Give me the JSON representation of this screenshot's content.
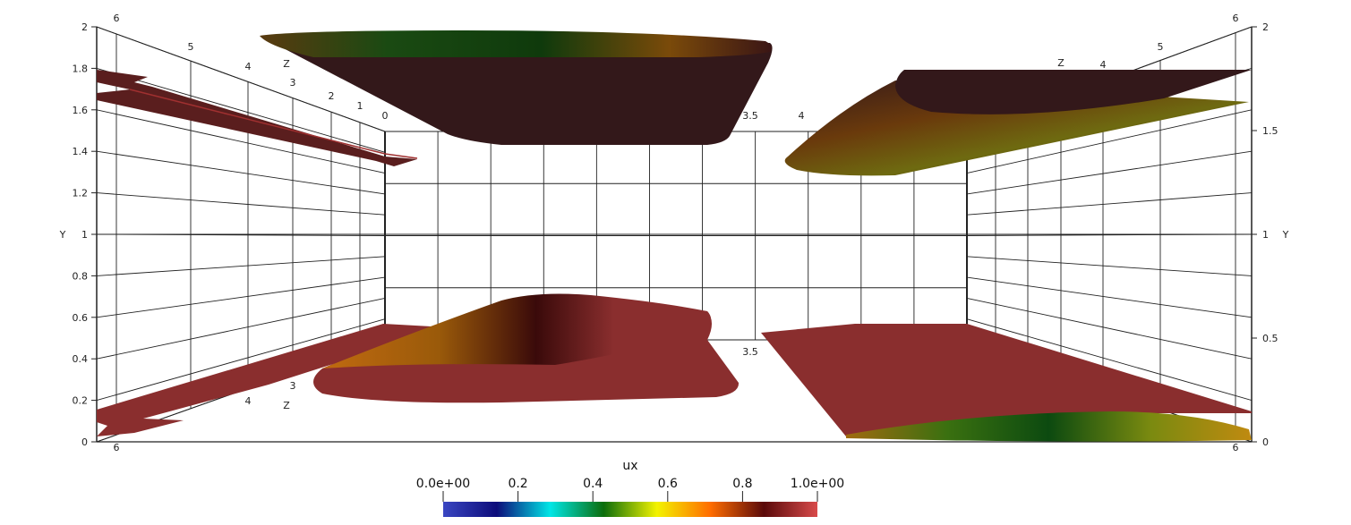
{
  "chart_data": {
    "type": "surface-3d",
    "scalar_field": "ux",
    "colorbar": {
      "title": "ux",
      "range": [
        0,
        1
      ],
      "labels": [
        "0.0e+00",
        "0.2",
        "0.4",
        "0.6",
        "0.8",
        "1.0e+00"
      ],
      "ticks": [
        0,
        0.2,
        0.4,
        0.6,
        0.8,
        1.0
      ],
      "colormap": [
        "#3a46c2",
        "#0c0c7a",
        "#00e6e6",
        "#0b6d0b",
        "#f3f300",
        "#ff6d00",
        "#5a0a0a",
        "#d84a4a"
      ]
    },
    "y_axis": {
      "label": "Y",
      "range": [
        0,
        2
      ],
      "left_labels": [
        "0",
        "0.2",
        "0.4",
        "0.6",
        "0.8",
        "1",
        "1.2",
        "1.4",
        "1.6",
        "1.8",
        "2"
      ],
      "right_labels": [
        "0",
        "0.5",
        "1",
        "1.5",
        "2"
      ]
    },
    "z_axis": {
      "label": "Z",
      "labels": [
        "0",
        "1",
        "2",
        "3",
        "4",
        "5",
        "6"
      ]
    },
    "x_axis": {
      "labels": [
        "3.5",
        "4"
      ]
    },
    "grid": true,
    "surface_colors": {
      "dark": "#33181a",
      "medium": "#862c2c",
      "light": "#9a3535",
      "green": "#0d4010",
      "orange": "#b85a0a"
    }
  }
}
